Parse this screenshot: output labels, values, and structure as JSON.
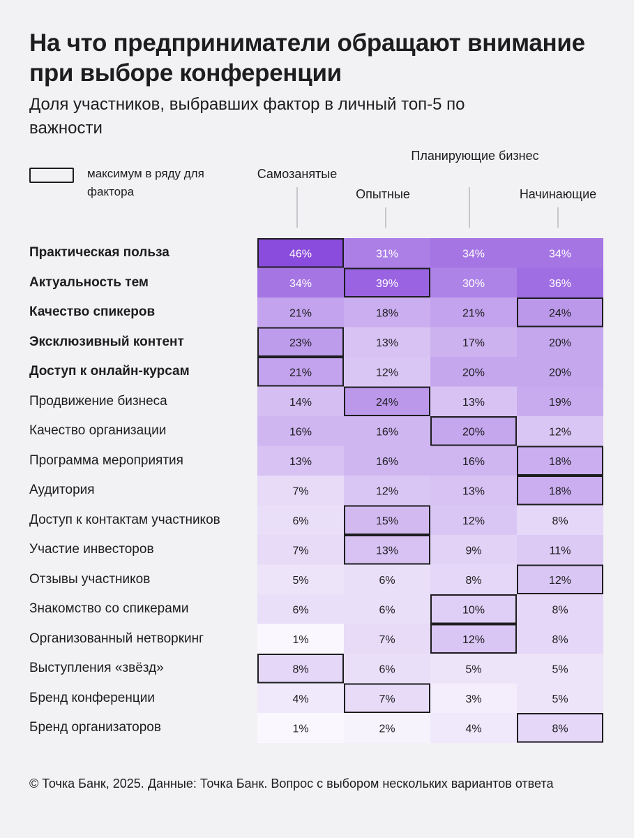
{
  "header": {
    "title": "На что предприниматели обращают внимание при выборе конференции",
    "subtitle": "Доля участников, выбравших фактор в личный топ-5 по важности"
  },
  "legend": {
    "label": "максимум в ряду для фактора"
  },
  "footer": {
    "source": "© Точка Банк, 2025. Данные: Точка Банк. Вопрос с выбором нескольких вариантов ответа"
  },
  "colors": {
    "background": "#f2f1f3",
    "text": "#1d1d1f",
    "max_border": "#1d1d1f",
    "scale_low": "#ffffff",
    "scale_high": "#8a4cdc"
  },
  "chart_data": {
    "type": "heatmap",
    "title": "На что предприниматели обращают внимание при выборе конференции",
    "subtitle": "Доля участников, выбравших фактор в личный топ-5 по важности",
    "unit": "%",
    "columns": [
      "Самозанятые",
      "Опытные",
      "Планирующие бизнес",
      "Начинающие"
    ],
    "rows": [
      {
        "label": "Практическая польза",
        "bold": true,
        "values": [
          46,
          31,
          34,
          34
        ],
        "max_index": [
          0
        ]
      },
      {
        "label": "Актуальность тем",
        "bold": true,
        "values": [
          34,
          39,
          30,
          36
        ],
        "max_index": [
          1
        ]
      },
      {
        "label": "Качество спикеров",
        "bold": true,
        "values": [
          21,
          18,
          21,
          24
        ],
        "max_index": [
          3
        ]
      },
      {
        "label": "Эксклюзивный контент",
        "bold": true,
        "values": [
          23,
          13,
          17,
          20
        ],
        "max_index": [
          0
        ]
      },
      {
        "label": "Доступ к онлайн-курсам",
        "bold": true,
        "values": [
          21,
          12,
          20,
          20
        ],
        "max_index": [
          0
        ]
      },
      {
        "label": "Продвижение бизнеса",
        "bold": false,
        "values": [
          14,
          24,
          13,
          19
        ],
        "max_index": [
          1
        ]
      },
      {
        "label": "Качество организации",
        "bold": false,
        "values": [
          16,
          16,
          20,
          12
        ],
        "max_index": [
          2
        ]
      },
      {
        "label": "Программа мероприятия",
        "bold": false,
        "values": [
          13,
          16,
          16,
          18
        ],
        "max_index": [
          3
        ]
      },
      {
        "label": "Аудитория",
        "bold": false,
        "values": [
          7,
          12,
          13,
          18
        ],
        "max_index": [
          3
        ]
      },
      {
        "label": "Доступ к контактам участников",
        "bold": false,
        "values": [
          6,
          15,
          12,
          8
        ],
        "max_index": [
          1
        ]
      },
      {
        "label": "Участие инвесторов",
        "bold": false,
        "values": [
          7,
          13,
          9,
          11
        ],
        "max_index": [
          1
        ]
      },
      {
        "label": "Отзывы участников",
        "bold": false,
        "values": [
          5,
          6,
          8,
          12
        ],
        "max_index": [
          3
        ]
      },
      {
        "label": "Знакомство со спикерами",
        "bold": false,
        "values": [
          6,
          6,
          10,
          8
        ],
        "max_index": [
          2
        ]
      },
      {
        "label": "Организованный нетворкинг",
        "bold": false,
        "values": [
          1,
          7,
          12,
          8
        ],
        "max_index": [
          2
        ]
      },
      {
        "label": "Выступления «звёзд»",
        "bold": false,
        "values": [
          8,
          6,
          5,
          5
        ],
        "max_index": [
          0
        ]
      },
      {
        "label": "Бренд конференции",
        "bold": false,
        "values": [
          4,
          7,
          3,
          5
        ],
        "max_index": [
          1
        ]
      },
      {
        "label": "Бренд организаторов",
        "bold": false,
        "values": [
          1,
          2,
          4,
          8
        ],
        "max_index": [
          3
        ]
      }
    ],
    "value_range": [
      0,
      46
    ]
  }
}
